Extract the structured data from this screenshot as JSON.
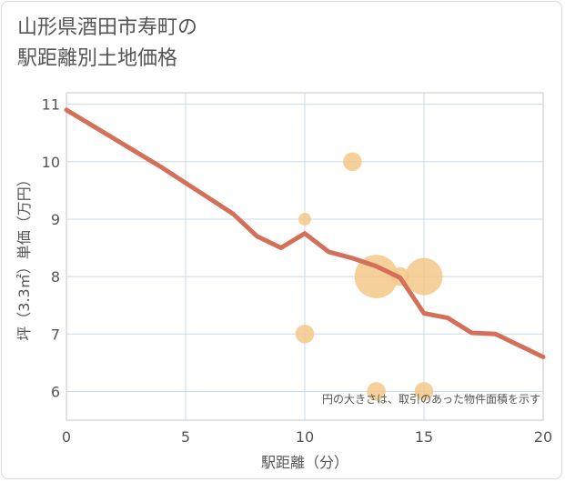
{
  "chart_data": {
    "type": "scatter+line",
    "title": "山形県酒田市寿町の\n駅距離別土地価格",
    "xlabel": "駅距離（分）",
    "ylabel": "坪（3.3㎡）単価（万円）",
    "xlim": [
      0,
      20
    ],
    "ylim": [
      5.5,
      11.2
    ],
    "x_ticks": [
      0,
      5,
      10,
      15,
      20
    ],
    "y_ticks": [
      6,
      7,
      8,
      9,
      10,
      11
    ],
    "grid": true,
    "annotation": "円の大きさは、取引のあった物件面積を示す",
    "line": {
      "color": "#d4705a",
      "x": [
        0,
        1,
        2,
        3,
        4,
        5,
        6,
        7,
        8,
        9,
        10,
        11,
        12,
        13,
        14,
        15,
        16,
        17,
        18,
        19,
        20
      ],
      "y": [
        10.9,
        10.65,
        10.4,
        10.15,
        9.9,
        9.63,
        9.36,
        9.09,
        8.7,
        8.5,
        8.75,
        8.43,
        8.32,
        8.18,
        7.98,
        7.36,
        7.28,
        7.02,
        7.0,
        6.8,
        6.6
      ]
    },
    "bubbles": {
      "color": "#f3c88a",
      "points": [
        {
          "x": 12,
          "y": 10.0,
          "size": 2
        },
        {
          "x": 10,
          "y": 9.0,
          "size": 1
        },
        {
          "x": 13,
          "y": 8.0,
          "size": 6
        },
        {
          "x": 14,
          "y": 8.0,
          "size": 2
        },
        {
          "x": 15,
          "y": 8.0,
          "size": 5
        },
        {
          "x": 10,
          "y": 7.0,
          "size": 2
        },
        {
          "x": 13,
          "y": 6.0,
          "size": 2
        },
        {
          "x": 15,
          "y": 6.0,
          "size": 2
        }
      ]
    }
  }
}
